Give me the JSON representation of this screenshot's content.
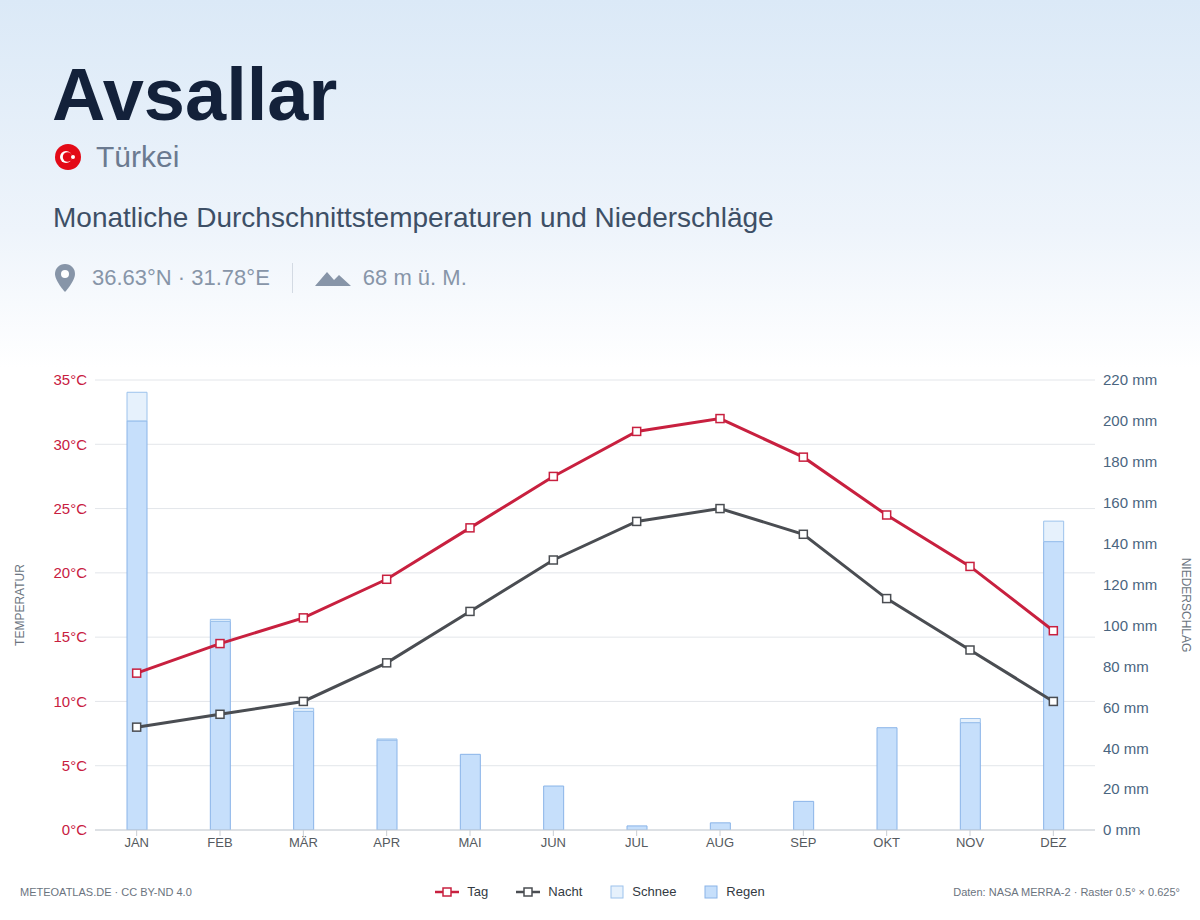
{
  "chart_data": {
    "type": "combo",
    "title": "Avsallar",
    "country": "Türkei",
    "subtitle": "Monatliche Durchschnittstemperaturen und Niederschläge",
    "coordinates": "36.63°N · 31.78°E",
    "elevation": "68 m ü. M.",
    "source": "METEOATLAS.DE · CC BY-ND 4.0",
    "credit": "Daten: NASA MERRA-2 · Raster 0.5° × 0.625°",
    "categories": [
      "JAN",
      "FEB",
      "MÄR",
      "APR",
      "MAI",
      "JUN",
      "JUL",
      "AUG",
      "SEP",
      "OKT",
      "NOV",
      "DEZ"
    ],
    "ylabel": "TEMPERATUR",
    "y2label": "NIEDERSCHLAG",
    "ylim": [
      0,
      35
    ],
    "yticks": [
      {
        "value": 0,
        "label": "0°C"
      },
      {
        "value": 5,
        "label": "5°C"
      },
      {
        "value": 10,
        "label": "10°C"
      },
      {
        "value": 15,
        "label": "15°C"
      },
      {
        "value": 20,
        "label": "20°C"
      },
      {
        "value": 25,
        "label": "25°C"
      },
      {
        "value": 30,
        "label": "30°C"
      },
      {
        "value": 35,
        "label": "35°C"
      }
    ],
    "y2lim": [
      0,
      220
    ],
    "y2ticks": [
      {
        "value": 0,
        "label": "0 mm"
      },
      {
        "value": 20,
        "label": "20 mm"
      },
      {
        "value": 40,
        "label": "40 mm"
      },
      {
        "value": 60,
        "label": "60 mm"
      },
      {
        "value": 80,
        "label": "80 mm"
      },
      {
        "value": 100,
        "label": "100 mm"
      },
      {
        "value": 120,
        "label": "120 mm"
      },
      {
        "value": 140,
        "label": "140 mm"
      },
      {
        "value": 160,
        "label": "160 mm"
      },
      {
        "value": 180,
        "label": "180 mm"
      },
      {
        "value": 200,
        "label": "200 mm"
      },
      {
        "value": 220,
        "label": "220 mm"
      }
    ],
    "grid": true,
    "stacked": true,
    "legend": "bottom",
    "series": [
      {
        "name": "Tag",
        "type": "line",
        "color": "#c8203f",
        "marker": "square",
        "values": [
          12.2,
          14.5,
          16.5,
          19.5,
          23.5,
          27.5,
          31,
          32,
          29,
          24.5,
          20.5,
          15.5
        ]
      },
      {
        "name": "Nacht",
        "type": "line",
        "color": "#4a4d52",
        "marker": "square",
        "values": [
          8,
          9,
          10,
          13,
          17,
          21,
          24,
          25,
          23,
          18,
          14,
          10
        ]
      },
      {
        "name": "Schnee",
        "type": "bar",
        "axis": "y2",
        "color": "#e6f1fc",
        "values": [
          14,
          1,
          1.5,
          0.5,
          0,
          0,
          0,
          0,
          0,
          0,
          2,
          10
        ]
      },
      {
        "name": "Regen",
        "type": "bar",
        "axis": "y2",
        "color": "#c6dffb",
        "values": [
          200,
          102,
          58,
          44,
          37,
          21.5,
          2,
          3.5,
          14,
          50,
          52.5,
          141
        ]
      }
    ]
  }
}
